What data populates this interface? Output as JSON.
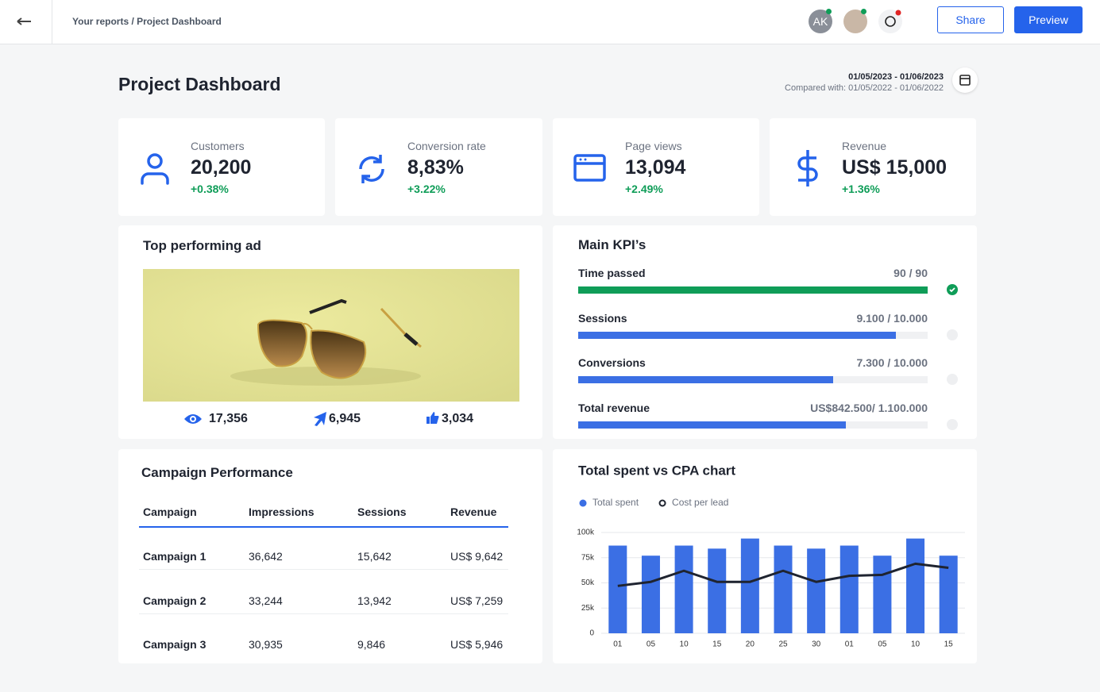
{
  "header": {
    "breadcrumb": "Your reports / Project Dashboard",
    "avatar": "AK",
    "share": "Share",
    "preview": "Preview"
  },
  "page": {
    "title": "Project Dashboard",
    "date_range": "01/05/2023 - 01/06/2023",
    "compared": "Compared with: 01/05/2022 - 01/06/2022"
  },
  "stats": [
    {
      "label": "Customers",
      "value": "20,200",
      "change": "+0.38%"
    },
    {
      "label": "Conversion rate",
      "value": "8,83%",
      "change": "+3.22%"
    },
    {
      "label": "Page views",
      "value": "13,094",
      "change": "+2.49%"
    },
    {
      "label": "Revenue",
      "value": "US$ 15,000",
      "change": "+1.36%"
    }
  ],
  "ad": {
    "title": "Top performing ad",
    "views": "17,356",
    "clicks": "6,945",
    "likes": "3,034"
  },
  "kpis": {
    "title": "Main KPI’s",
    "items": [
      {
        "name": "Time passed",
        "value": 90,
        "max": 90,
        "label": "90 / 90",
        "done": true,
        "color": "#0f9d58"
      },
      {
        "name": "Sessions",
        "value": 9100,
        "max": 10000,
        "label": "9.100 / 10.000",
        "done": false,
        "color": "#3b6fe4"
      },
      {
        "name": "Conversions",
        "value": 7300,
        "max": 10000,
        "label": "7.300 / 10.000",
        "done": false,
        "color": "#3b6fe4"
      },
      {
        "name": "Total revenue",
        "value": 842500,
        "max": 1100000,
        "label": "US$842.500/ 1.100.000",
        "done": false,
        "color": "#3b6fe4"
      }
    ]
  },
  "campaigns": {
    "title": "Campaign Performance",
    "columns": [
      "Campaign",
      "Impressions",
      "Sessions",
      "Revenue"
    ],
    "rows": [
      [
        "Campaign 1",
        "36,642",
        "15,642",
        "US$ 9,642"
      ],
      [
        "Campaign 2",
        "33,244",
        "13,942",
        "US$ 7,259"
      ],
      [
        "Campaign 3",
        "30,935",
        "9,846",
        "US$ 5,946"
      ]
    ]
  },
  "chart_data": {
    "type": "combo",
    "title": "Total spent vs CPA chart",
    "categories": [
      "01",
      "05",
      "10",
      "15",
      "20",
      "25",
      "30",
      "01",
      "05",
      "10",
      "15"
    ],
    "series": [
      {
        "name": "Total spent",
        "color": "#3b6fe4",
        "kind": "bar",
        "values": [
          87000,
          77000,
          87000,
          84000,
          94000,
          87000,
          84000,
          87000,
          77000,
          94000,
          77000
        ]
      },
      {
        "name": "Cost per lead",
        "color": "#1f2430",
        "kind": "line",
        "values": [
          47000,
          51000,
          62000,
          51000,
          51000,
          62000,
          51000,
          57000,
          58000,
          69000,
          65000
        ]
      }
    ],
    "ylim": [
      0,
      100000
    ],
    "yticks": [
      0,
      {
        "value": 25000,
        "label": "25k"
      },
      {
        "value": 50000,
        "label": "50k"
      },
      {
        "value": 75000,
        "label": "75k"
      },
      {
        "value": 100000,
        "label": "100k"
      }
    ],
    "grid": true
  }
}
